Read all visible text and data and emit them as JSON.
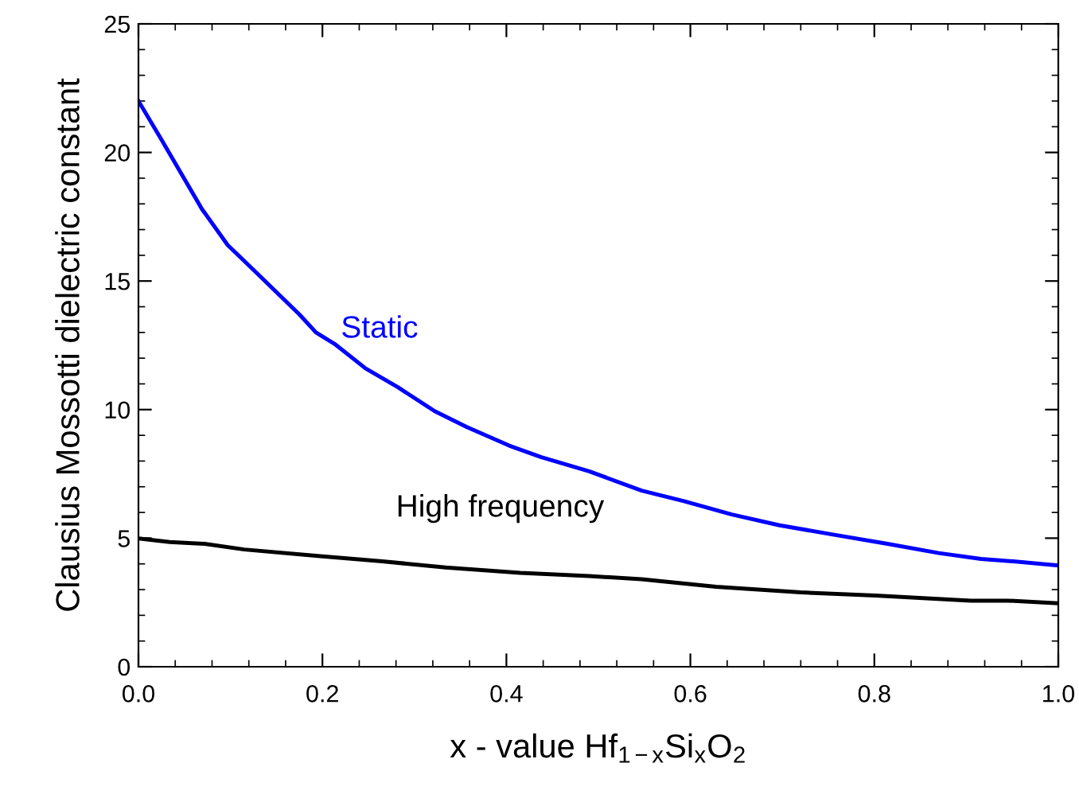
{
  "chart_data": {
    "type": "line",
    "xlabel": "x - value Hf$_{1−x}$Si$_{x}$O$_{2}$",
    "ylabel": "Clausius Mossotti dielectric constant",
    "xlim": [
      0,
      1
    ],
    "xticks": [
      {
        "value": 0,
        "label": "0.0"
      },
      0.2,
      0.4,
      0.6,
      0.8,
      {
        "value": 1,
        "label": "1.0"
      }
    ],
    "ylim": [
      0,
      25
    ],
    "yticks": [
      0,
      5,
      10,
      15,
      20,
      25
    ],
    "grid": false,
    "legend": false,
    "marker": "none",
    "line_style": "solid",
    "series": [
      {
        "name": "Static",
        "color": "#0000ff",
        "x": [
          0,
          0.025,
          0.069,
          0.097,
          0.126,
          0.175,
          0.193,
          0.213,
          0.247,
          0.282,
          0.322,
          0.357,
          0.403,
          0.438,
          0.49,
          0.547,
          0.593,
          0.645,
          0.697,
          0.755,
          0.813,
          0.87,
          0.916,
          0.951,
          1.0
        ],
        "values": [
          22.0,
          20.5,
          17.8,
          16.4,
          15.4,
          13.7,
          13.0,
          12.56,
          11.6,
          10.87,
          9.94,
          9.32,
          8.6,
          8.15,
          7.6,
          6.85,
          6.44,
          5.92,
          5.5,
          5.14,
          4.79,
          4.42,
          4.19,
          4.1,
          3.94
        ]
      },
      {
        "name": "High frequency",
        "color": "#000000",
        "x": [
          0,
          0.034,
          0.072,
          0.115,
          0.195,
          0.265,
          0.334,
          0.415,
          0.49,
          0.547,
          0.628,
          0.72,
          0.801,
          0.905,
          0.945,
          1.0
        ],
        "values": [
          4.99,
          4.85,
          4.78,
          4.56,
          4.31,
          4.1,
          3.86,
          3.65,
          3.53,
          3.4,
          3.11,
          2.89,
          2.77,
          2.57,
          2.57,
          2.47
        ]
      }
    ]
  }
}
